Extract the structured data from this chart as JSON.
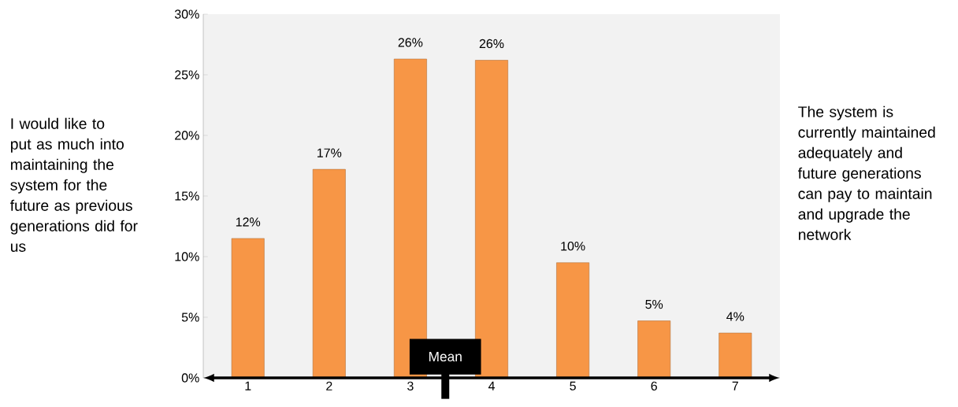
{
  "chart_data": {
    "type": "bar",
    "x": [
      1,
      2,
      3,
      4,
      5,
      6,
      7
    ],
    "values": [
      11.5,
      17.2,
      26.3,
      26.2,
      9.5,
      4.7,
      3.7
    ],
    "value_labels": [
      "12%",
      "17%",
      "26%",
      "26%",
      "10%",
      "5%",
      "4%"
    ],
    "color": "#f79646",
    "xlim": [
      0.45,
      7.55
    ],
    "xticks": [
      1,
      2,
      3,
      4,
      5,
      6,
      7
    ],
    "ylim": [
      0,
      30
    ],
    "yticks": [
      {
        "value": 0,
        "label": "0%"
      },
      {
        "value": 5,
        "label": "5%"
      },
      {
        "value": 10,
        "label": "10%"
      },
      {
        "value": 15,
        "label": "15%"
      },
      {
        "value": 20,
        "label": "20%"
      },
      {
        "value": 25,
        "label": "25%"
      },
      {
        "value": 30,
        "label": "30%"
      }
    ],
    "ref_lines": [
      {
        "axis": "x",
        "value": 3.43,
        "label": "Mean",
        "color": "#000000"
      }
    ],
    "annotations": [
      "I would like to put as much into maintaining the system for the future as previous generations did for us",
      "The system is currently maintained adequately and future generations can pay to maintain and upgrade the network"
    ],
    "grid": false
  }
}
